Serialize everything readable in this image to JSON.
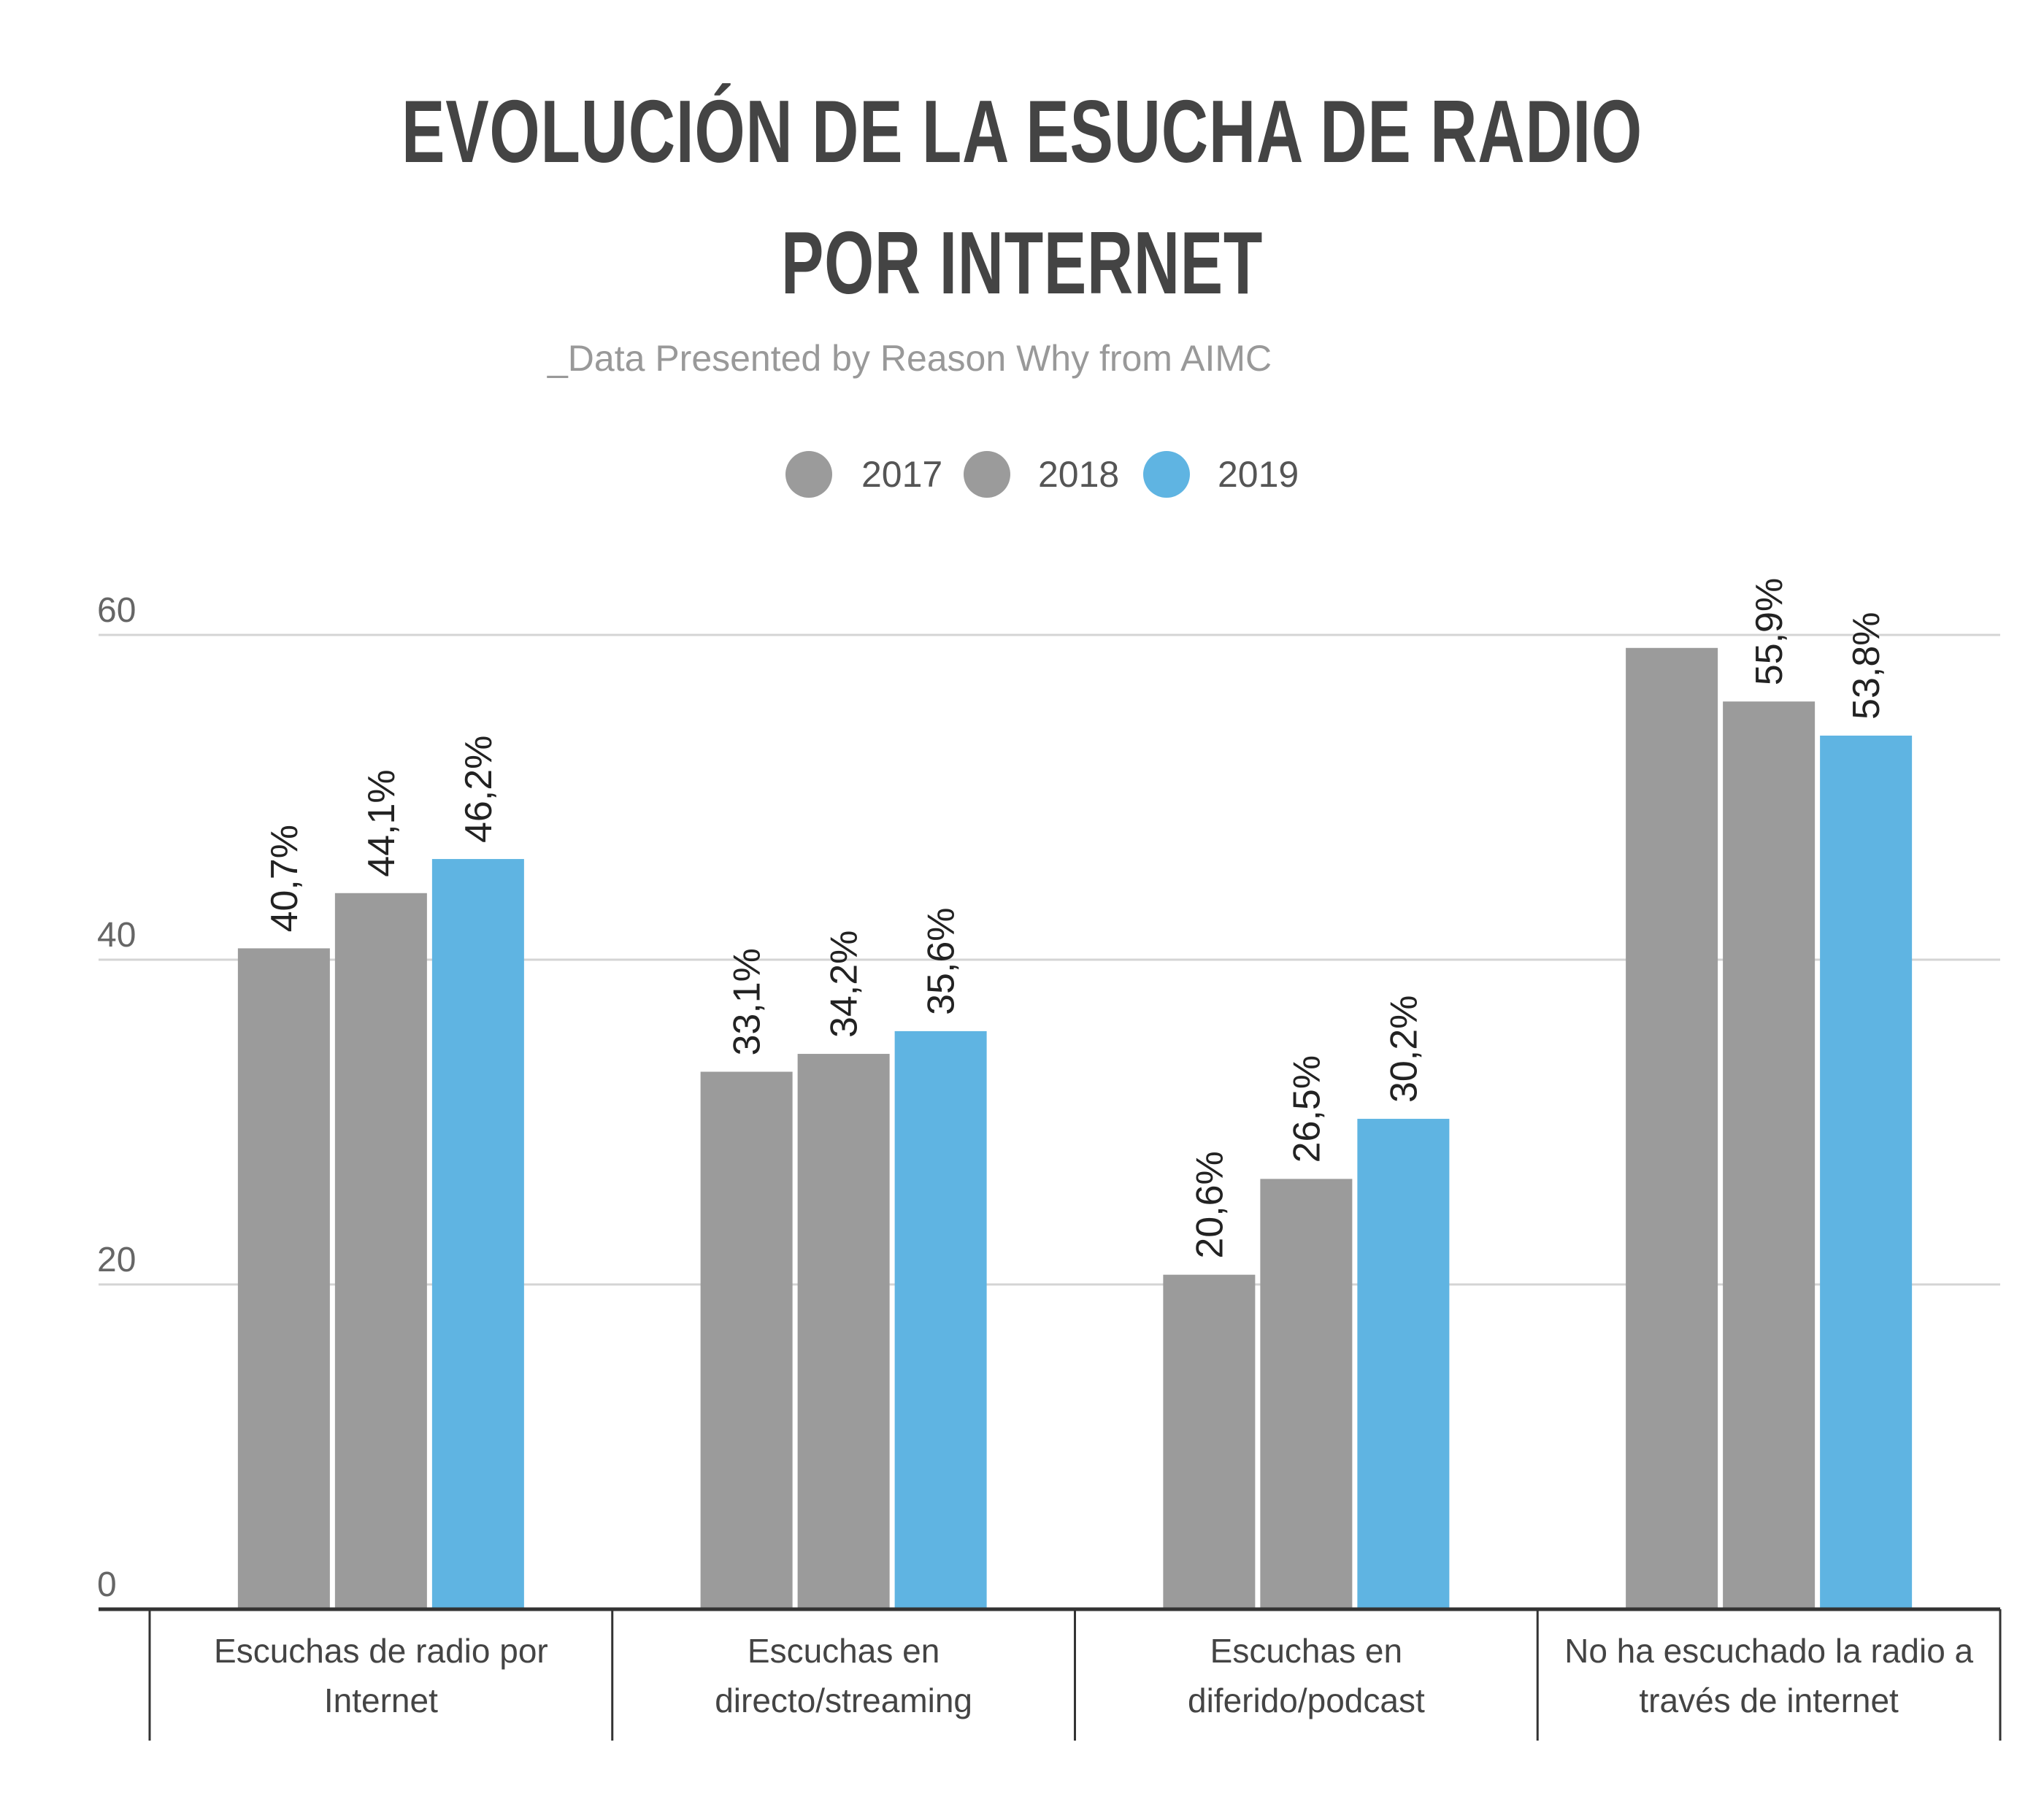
{
  "chart_data": {
    "type": "bar",
    "title": "EVOLUCIÓN DE LA ESUCHA DE RADIO POR INTERNET",
    "title_lines": [
      "EVOLUCIÓN DE LA ESUCHA DE RADIO",
      "POR INTERNET"
    ],
    "subtitle": "_Data Presented by Reason Why from AIMC",
    "categories": [
      "Escuchas de radio por Internet",
      "Escuchas en directo/streaming",
      "Escuchas en diferido/podcast",
      "No ha escuchado la radio a través de internet"
    ],
    "category_lines": [
      [
        "Escuchas de radio por",
        "Internet"
      ],
      [
        "Escuchas en",
        "directo/streaming"
      ],
      [
        "Escuchas en",
        "diferido/podcast"
      ],
      [
        "No ha escuchado la radio a",
        "través de internet"
      ]
    ],
    "series": [
      {
        "name": "2017",
        "color": "#9b9b9b",
        "values": [
          40.7,
          33.1,
          20.6,
          59.2
        ],
        "labels": [
          "40,7%",
          "33,1%",
          "20,6%",
          ""
        ]
      },
      {
        "name": "2018",
        "color": "#9b9b9b",
        "values": [
          44.1,
          34.2,
          26.5,
          55.9
        ],
        "labels": [
          "44,1%",
          "34,2%",
          "26,5%",
          "55,9%"
        ]
      },
      {
        "name": "2019",
        "color": "#5fb4e2",
        "values": [
          46.2,
          35.6,
          30.2,
          53.8
        ],
        "labels": [
          "46,2%",
          "35,6%",
          "30,2%",
          "53,8%"
        ]
      }
    ],
    "ylim": [
      0,
      60
    ],
    "yticks": [
      0,
      20,
      40,
      60
    ],
    "grid": true,
    "legend": "top-center",
    "xlabel": "",
    "ylabel": ""
  }
}
